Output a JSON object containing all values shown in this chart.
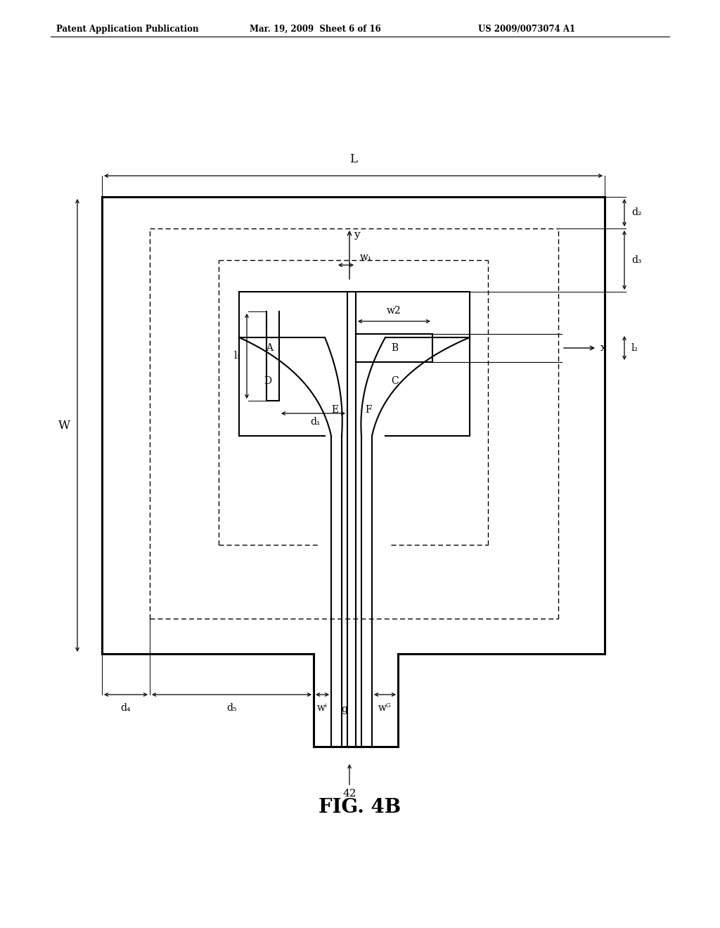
{
  "bg_color": "#ffffff",
  "lc": "#000000",
  "header_left": "Patent Application Publication",
  "header_center": "Mar. 19, 2009  Sheet 6 of 16",
  "header_right": "US 2009/0073074 A1",
  "fig_label": "FIG. 4B"
}
